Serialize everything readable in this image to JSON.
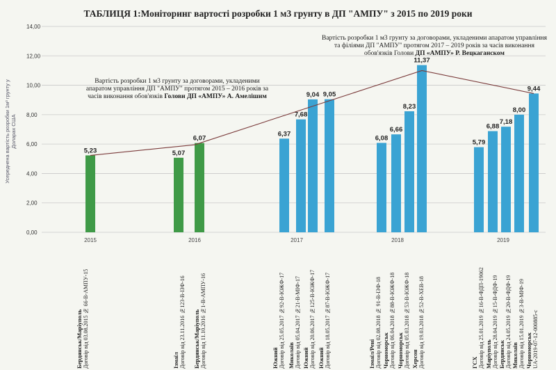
{
  "title": "ТАБЛИЦЯ 1:Моніторинг вартості розробки 1 м3 грунту в ДП \"АМПУ\" з 2015 по 2019 роки",
  "y_axis_title": "Усереднена вартість розробки 1м³ грунту у Доларах США",
  "colors": {
    "green": "#3f9a47",
    "blue": "#3aa3d3",
    "line": "#7a3a3a",
    "grid": "#c9c9c9"
  },
  "notes": [
    {
      "text": "Вартість розробки 1 м3 грунту за договорами, укладеними апаратом управління ДП \"АМПУ\" протягом 2015 – 2016 років за часів виконання обов'язків",
      "name": "Голови ДП «АМПУ» А. Амелішим"
    },
    {
      "text": "Вартість розробки 1 м3 грунту за договорами, укладеними апаратом управління та філіями ДП \"АМПУ\" протягом 2017 – 2019 років за часів виконання обов'язків Голови",
      "name": "ДП «АМПУ» Р. Вецкаганском"
    }
  ],
  "chart_data": {
    "type": "bar",
    "ylim": [
      0,
      14
    ],
    "yticks": [
      "0,00",
      "2,00",
      "4,00",
      "6,00",
      "8,00",
      "10,00",
      "12,00",
      "14,00"
    ],
    "years": [
      "2015",
      "2016",
      "2017",
      "2018",
      "2019"
    ],
    "bars": [
      {
        "value": 5.23,
        "label": "5,23",
        "color": "green",
        "year": "2015",
        "name": "Бердянськ/Маріуполь",
        "contract": "Договір від 03.08.2015 № 66-В-АМПУ-15"
      },
      {
        "value": 5.07,
        "label": "5,07",
        "color": "green",
        "year": "2016",
        "name": "Ізмаїл",
        "contract": "Договір від 23.11.2016 №123-В-ІЗФ-16"
      },
      {
        "value": 6.07,
        "label": "6,07",
        "color": "green",
        "year": "2016",
        "name": "Бердянськ/Маріуполь",
        "contract": "Договір від 11.10.2016 №1-В-АМПУ-16"
      },
      {
        "value": 6.37,
        "label": "6,37",
        "color": "blue",
        "year": "2017",
        "name": "Южний",
        "contract": "Договір від 25.05.2017 №92-В-ЮЖФ-17"
      },
      {
        "value": 7.68,
        "label": "7,68",
        "color": "blue",
        "year": "2017",
        "name": "Миколаїв",
        "contract": "Договір від 05.04.2017 №21-В-МІФ-17"
      },
      {
        "value": 9.04,
        "label": "9,04",
        "color": "blue",
        "year": "2017",
        "name": "Южний",
        "contract": "Договір від 20.06.2017 №125-В-ЮЖФ-17"
      },
      {
        "value": 9.05,
        "label": "9,05",
        "color": "blue",
        "year": "2017",
        "name": "Южний",
        "contract": "Договір від 18.05.2017 №87-В-ЮЖФ-17"
      },
      {
        "value": 6.08,
        "label": "6,08",
        "color": "blue",
        "year": "2018",
        "name": "Ізмаїл/Рені",
        "contract": "Договір від 02.08.2018 № 91-В-ІЗФ-18"
      },
      {
        "value": 6.66,
        "label": "6,66",
        "color": "blue",
        "year": "2018",
        "name": "Чорноморськ",
        "contract": "Договір від 06.04.2018 №88-В-ЮЖФ-18"
      },
      {
        "value": 8.23,
        "label": "8,23",
        "color": "blue",
        "year": "2018",
        "name": "Чорноморськ",
        "contract": "Договір від 05.03.2018 №53-В-ЮЖФ-18"
      },
      {
        "value": 11.37,
        "label": "11,37",
        "color": "blue",
        "year": "2018",
        "name": "Херсон",
        "contract": "Договір від 19.03.2018 №52-В-ХЕВ-18"
      },
      {
        "value": 5.79,
        "label": "5,79",
        "color": "blue",
        "year": "2019",
        "name": "ГСХ",
        "contract": "Договір від 25.01.2019 №16-В-ФДП-19062"
      },
      {
        "value": 6.88,
        "label": "6,88",
        "color": "blue",
        "year": "2019",
        "name": "Маріуполь",
        "contract": "Договір від 28.04.2019 №15-В-ФДФ-19"
      },
      {
        "value": 7.18,
        "label": "7,18",
        "color": "blue",
        "year": "2019",
        "name": "Бердянськ",
        "contract": "Договір від 24.05.2019 №20-В-ФДФ-19"
      },
      {
        "value": 8.0,
        "label": "8,00",
        "color": "blue",
        "year": "2019",
        "name": "Миколаїв",
        "contract": "Договір від 15.01.2019 №3-В-МІФ-19"
      },
      {
        "value": 9.44,
        "label": "9,44",
        "color": "blue",
        "year": "2019",
        "name": "Чорноморськ",
        "contract": "UA-2019-07-12-000885-c"
      }
    ],
    "trend": [
      {
        "year": "2015",
        "value": 5.23
      },
      {
        "year": "2016",
        "value": 5.95
      },
      {
        "year": "2018",
        "value": 11.0
      },
      {
        "year": "2019",
        "value": 9.44
      }
    ]
  }
}
